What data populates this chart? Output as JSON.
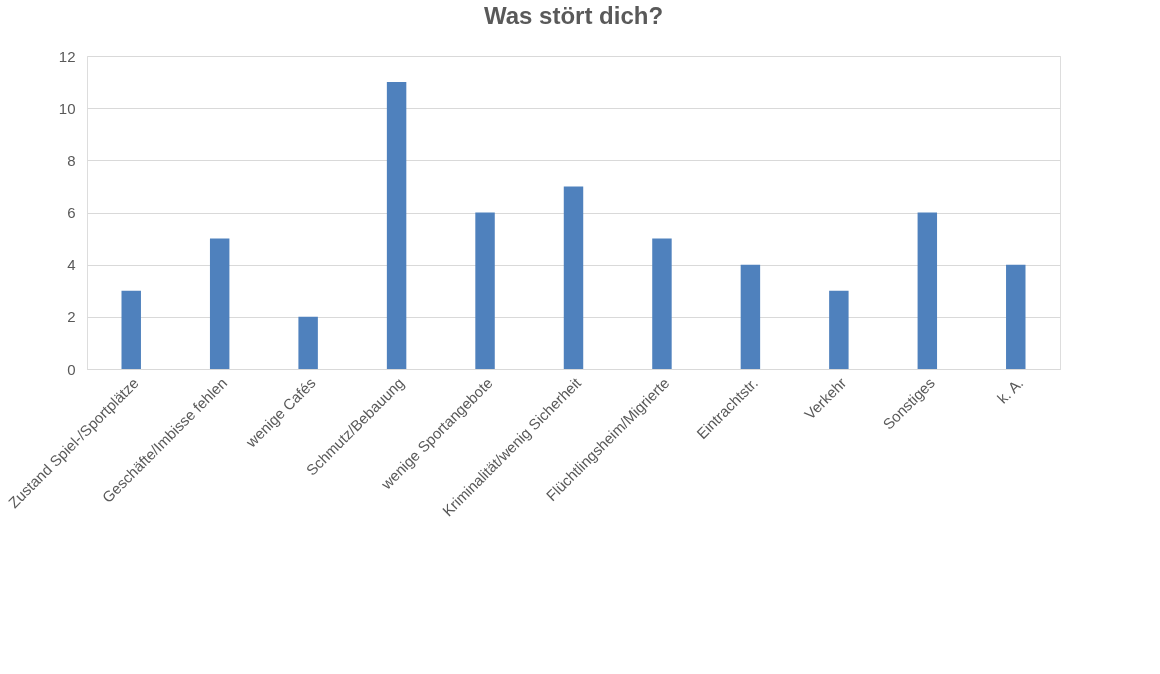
{
  "chart_data": {
    "type": "bar",
    "title": "Was stört dich?",
    "categories": [
      "Zustand Spiel-/Sportplätze",
      "Geschäfte/Imbisse fehlen",
      "wenige Cafés",
      "Schmutz/Bebauung",
      "wenige Sportangebote",
      "Kriminalität/wenig Sicherheit",
      "Flüchtlingsheim/Migrierte",
      "Eintrachtstr.",
      "Verkehr",
      "Sonstiges",
      "k. A."
    ],
    "values": [
      3,
      5,
      2,
      11,
      6,
      7,
      5,
      4,
      3,
      6,
      4
    ],
    "color": "#4f81bd",
    "ylim": [
      0,
      12
    ],
    "yticks": [
      0,
      2,
      4,
      6,
      8,
      10,
      12
    ],
    "grid": "y"
  }
}
